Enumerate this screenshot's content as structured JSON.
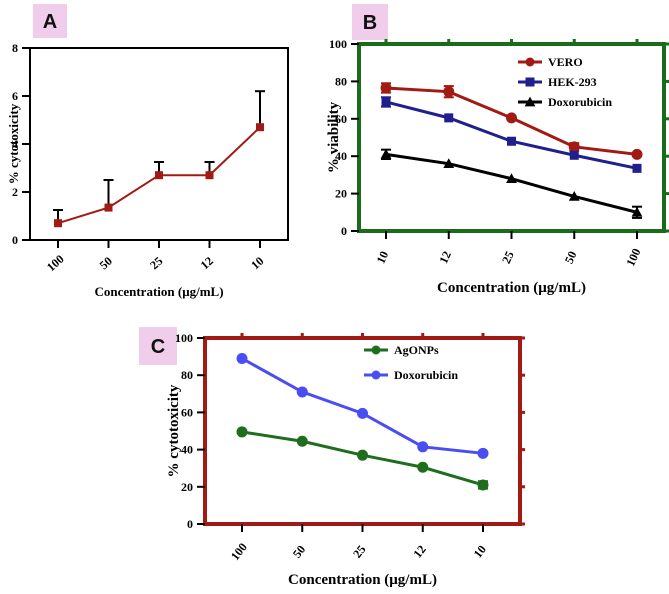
{
  "chart_data": [
    {
      "id": "A",
      "panel_label": "A",
      "type": "line",
      "categories": [
        "100",
        "50",
        "25",
        "12",
        "10"
      ],
      "series": [
        {
          "name": "cytotoxicity",
          "color": "#a11a14",
          "marker": "square",
          "values": [
            0.7,
            1.35,
            2.7,
            2.7,
            4.7
          ],
          "errors": [
            0.55,
            1.15,
            0.55,
            0.55,
            1.5
          ]
        }
      ],
      "xlabel": "Concentration (μg/mL)",
      "ylabel": "% cytotoxicity",
      "ylim": [
        0,
        8
      ],
      "yticks": [
        0,
        2,
        4,
        6,
        8
      ],
      "frame_color": "#000000",
      "legend": false
    },
    {
      "id": "B",
      "panel_label": "B",
      "type": "line",
      "categories": [
        "10",
        "12",
        "25",
        "50",
        "100"
      ],
      "series": [
        {
          "name": "VERO",
          "color": "#a11a14",
          "marker": "circle",
          "values": [
            76.5,
            74.5,
            60.5,
            45,
            41
          ],
          "errors": [
            2.5,
            3,
            0,
            2,
            0
          ]
        },
        {
          "name": "HEK-293",
          "color": "#1f1f8e",
          "marker": "square",
          "values": [
            69,
            60.5,
            48,
            40.5,
            33.5
          ],
          "errors": [
            2.5,
            0,
            0,
            0,
            0
          ]
        },
        {
          "name": "Doxorubicin",
          "color": "#000000",
          "marker": "triangle",
          "values": [
            41,
            36,
            28,
            18.5,
            10
          ],
          "errors": [
            2.5,
            0,
            0,
            0,
            3
          ]
        }
      ],
      "xlabel": "Concentration (μg/mL)",
      "ylabel": "% viability",
      "ylim": [
        0,
        100
      ],
      "yticks": [
        0,
        20,
        40,
        60,
        80,
        100
      ],
      "frame_color": "#1a6b1a",
      "legend": true,
      "legend_position": "top-right"
    },
    {
      "id": "C",
      "panel_label": "C",
      "type": "line",
      "categories": [
        "100",
        "50",
        "25",
        "12",
        "10"
      ],
      "series": [
        {
          "name": "AgONPs",
          "color": "#1e6e1e",
          "marker": "circle",
          "values": [
            49.5,
            44.5,
            37,
            30.5,
            21
          ],
          "errors": [
            0,
            0,
            0,
            0,
            2
          ]
        },
        {
          "name": "Doxorubicin",
          "color": "#4a4ef0",
          "marker": "circle",
          "values": [
            89,
            71,
            59.5,
            41.5,
            38
          ],
          "errors": [
            0,
            0,
            0,
            0,
            0
          ]
        }
      ],
      "xlabel": "Concentration (μg/mL)",
      "ylabel": "% cytotoxicity",
      "ylim": [
        0,
        100
      ],
      "yticks": [
        0,
        20,
        40,
        60,
        80,
        100
      ],
      "frame_color": "#a11a14",
      "legend": true,
      "legend_position": "top-right"
    }
  ],
  "colors": {
    "badge_fill": "#f0cdea"
  }
}
